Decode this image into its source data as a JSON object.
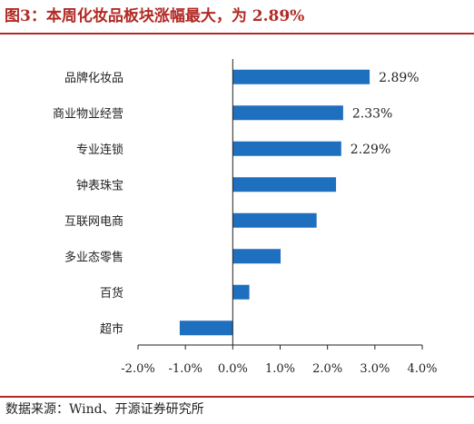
{
  "header": {
    "title": "图3：本周化妆品板块涨幅最大，为 2.89%"
  },
  "footer": {
    "source": "数据来源：Wind、开源证券研究所"
  },
  "colors": {
    "bar": "#1f6fbf",
    "title": "#b22a24",
    "axis": "#222222"
  },
  "chart_data": {
    "type": "bar",
    "orientation": "horizontal",
    "categories": [
      "品牌化妆品",
      "商业物业经营",
      "专业连锁",
      "钟表珠宝",
      "互联网电商",
      "多业态零售",
      "百货",
      "超市"
    ],
    "values": [
      2.89,
      2.33,
      2.29,
      2.18,
      1.77,
      1.01,
      0.35,
      -1.12
    ],
    "data_labels": [
      "2.89%",
      "2.33%",
      "2.29%",
      "",
      "",
      "",
      "",
      ""
    ],
    "x_ticks": [
      -2.0,
      -1.0,
      0.0,
      1.0,
      2.0,
      3.0,
      4.0
    ],
    "x_tick_labels": [
      "-2.0%",
      "-1.0%",
      "0.0%",
      "1.0%",
      "2.0%",
      "3.0%",
      "4.0%"
    ],
    "xlim": [
      -2.0,
      4.0
    ],
    "title": "",
    "xlabel": "",
    "ylabel": "",
    "grid": false,
    "legend": "none"
  }
}
